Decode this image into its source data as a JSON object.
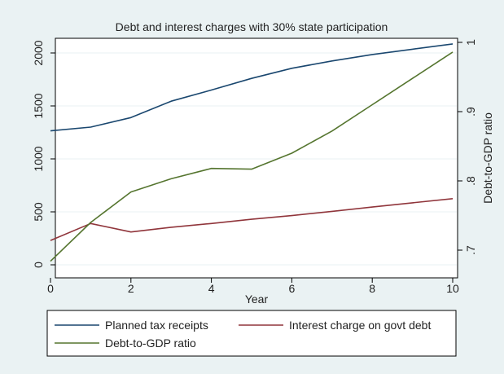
{
  "chart_data": {
    "type": "line",
    "title": "Debt and interest charges with 30% state participation",
    "xlabel": "Year",
    "ylabel_right": "Debt-to-GDP ratio",
    "x": [
      0,
      1,
      2,
      3,
      4,
      5,
      6,
      7,
      8,
      9,
      10
    ],
    "xlim": [
      0,
      10
    ],
    "xticks": [
      "0",
      "2",
      "4",
      "6",
      "8",
      "10"
    ],
    "ylim_left": [
      0,
      2000
    ],
    "yticks_left": [
      "0",
      "500",
      "1000",
      "1500",
      "2000"
    ],
    "ylim_right": [
      0.7,
      1.0
    ],
    "yticks_right": [
      ".7",
      ".8",
      ".9",
      "1"
    ],
    "grid": true,
    "legend_position": "bottom",
    "series": [
      {
        "name": "Planned tax receipts",
        "axis": "left",
        "color": "#1a476f",
        "values": [
          1265,
          1300,
          1390,
          1545,
          1650,
          1760,
          1855,
          1925,
          1985,
          2035,
          2085
        ]
      },
      {
        "name": "Interest charge on govt debt",
        "axis": "left",
        "color": "#90353b",
        "values": [
          230,
          390,
          310,
          355,
          390,
          430,
          465,
          505,
          545,
          585,
          625
        ]
      },
      {
        "name": "Debt-to-GDP ratio",
        "axis": "right",
        "color": "#55752f",
        "values": [
          0.684,
          0.74,
          0.784,
          0.803,
          0.818,
          0.817,
          0.84,
          0.872,
          0.91,
          0.948,
          0.986
        ]
      }
    ]
  }
}
